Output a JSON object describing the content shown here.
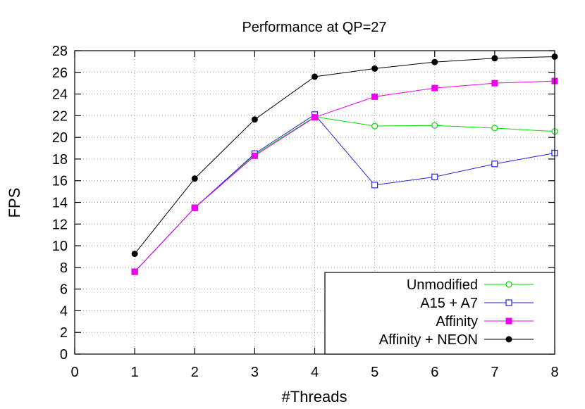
{
  "chart_data": {
    "type": "line",
    "title": "Performance at QP=27",
    "xlabel": "#Threads",
    "ylabel": "FPS",
    "xlim": [
      0,
      8
    ],
    "ylim": [
      0,
      28
    ],
    "xticks": [
      "0",
      "1",
      "2",
      "3",
      "4",
      "5",
      "6",
      "7",
      "8"
    ],
    "yticks": [
      "0",
      "2",
      "4",
      "6",
      "8",
      "10",
      "12",
      "14",
      "16",
      "18",
      "20",
      "22",
      "24",
      "26",
      "28"
    ],
    "grid": true,
    "legend_position": "bottom-right",
    "x": [
      1,
      2,
      3,
      4,
      5,
      6,
      7,
      8
    ],
    "series": [
      {
        "name": "Unmodified",
        "color": "#00dd00",
        "marker": "open-circle",
        "values": [
          7.6,
          13.5,
          18.4,
          21.9,
          21.05,
          21.1,
          20.85,
          20.55
        ]
      },
      {
        "name": "A15 + A7",
        "color": "#2222dd",
        "marker": "open-square",
        "values": [
          7.6,
          13.5,
          18.5,
          22.1,
          15.6,
          16.35,
          17.55,
          18.55
        ]
      },
      {
        "name": "Affinity",
        "color": "#ee00ee",
        "marker": "filled-square",
        "values": [
          7.6,
          13.5,
          18.3,
          21.85,
          23.75,
          24.55,
          25.0,
          25.2
        ]
      },
      {
        "name": "Affinity + NEON",
        "color": "#000000",
        "marker": "filled-circle",
        "values": [
          9.25,
          16.2,
          21.65,
          25.6,
          26.35,
          26.95,
          27.3,
          27.45
        ]
      }
    ]
  }
}
